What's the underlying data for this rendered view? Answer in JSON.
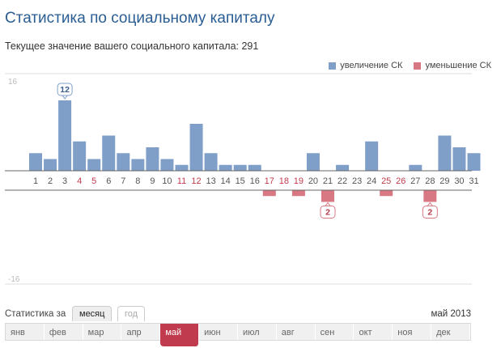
{
  "header": {
    "title": "Статистика по социальному капиталу",
    "subtitle": "Текущее значение вашего социального капитала: 291"
  },
  "legend": {
    "increase_label": "увеличение СК",
    "decrease_label": "уменьшение СК",
    "increase_color": "#7f9fc8",
    "decrease_color": "#d87883"
  },
  "chart_data": {
    "type": "bar",
    "categories": [
      "1",
      "2",
      "3",
      "4",
      "5",
      "6",
      "7",
      "8",
      "9",
      "10",
      "11",
      "12",
      "13",
      "14",
      "15",
      "16",
      "17",
      "18",
      "19",
      "20",
      "21",
      "22",
      "23",
      "24",
      "25",
      "26",
      "27",
      "28",
      "29",
      "30",
      "31"
    ],
    "series": [
      {
        "name": "увеличение СК",
        "values": [
          3,
          2,
          12,
          5,
          2,
          6,
          3,
          2,
          4,
          2,
          1,
          8,
          3,
          1,
          1,
          1,
          0,
          0,
          0,
          3,
          0,
          1,
          0,
          5,
          0,
          0,
          1,
          0,
          6,
          4,
          3
        ]
      },
      {
        "name": "уменьшение СК",
        "values": [
          0,
          0,
          0,
          0,
          0,
          0,
          0,
          0,
          0,
          0,
          0,
          0,
          0,
          0,
          0,
          0,
          1,
          0,
          1,
          0,
          2,
          0,
          0,
          0,
          1,
          0,
          0,
          2,
          0,
          0,
          0
        ]
      }
    ],
    "highlighted_days": [
      "4",
      "5",
      "11",
      "12",
      "17",
      "18",
      "19",
      "25",
      "26"
    ],
    "ylim": [
      -16,
      16
    ],
    "ytick_top": "16",
    "ytick_bottom": "-16",
    "callouts": [
      {
        "day": "3",
        "series": "увеличение СК",
        "label": "12"
      },
      {
        "day": "21",
        "series": "уменьшение СК",
        "label": "2"
      },
      {
        "day": "28",
        "series": "уменьшение СК",
        "label": "2"
      }
    ]
  },
  "period": {
    "label": "Статистика за",
    "tab_month": "месяц",
    "tab_year": "год",
    "current": "май 2013"
  },
  "months": [
    "янв",
    "фев",
    "мар",
    "апр",
    "май",
    "июн",
    "июл",
    "авг",
    "сен",
    "окт",
    "ноя",
    "дек"
  ],
  "active_month": "май"
}
